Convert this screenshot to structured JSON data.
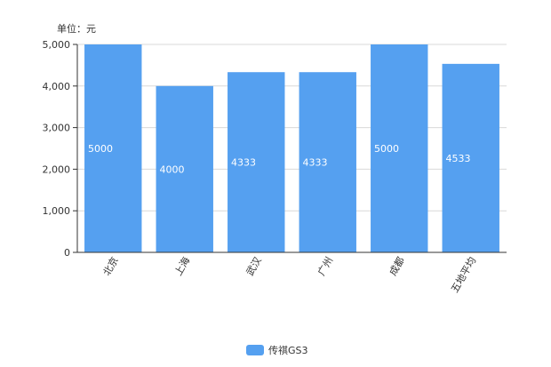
{
  "chart_data": {
    "type": "bar",
    "unit_label": "单位：元",
    "categories": [
      "北京",
      "上海",
      "武汉",
      "广州",
      "成都",
      "五地平均"
    ],
    "series": [
      {
        "name": "传祺GS3",
        "values": [
          5000,
          4000,
          4333,
          4333,
          5000,
          4533
        ],
        "color": "#55a0f0"
      }
    ],
    "data_labels": [
      "5000",
      "4000",
      "4333",
      "4333",
      "5000",
      "4533"
    ],
    "y_ticks": [
      0,
      1000,
      2000,
      3000,
      4000,
      5000
    ],
    "y_tick_labels": [
      "0",
      "1,000",
      "2,000",
      "3,000",
      "4,000",
      "5,000"
    ],
    "ylim": [
      0,
      5000
    ],
    "grid": true,
    "legend_position": "bottom-center"
  }
}
